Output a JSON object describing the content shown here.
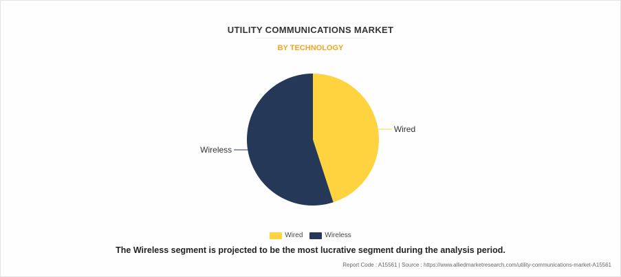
{
  "chart_data": {
    "type": "pie",
    "title": "UTILITY COMMUNICATIONS MARKET",
    "subtitle": "BY TECHNOLOGY",
    "labels": [
      "Wired",
      "Wireless"
    ],
    "values": [
      45,
      55
    ],
    "colors": [
      "#ffd23f",
      "#253858"
    ],
    "legend_position": "bottom"
  },
  "caption": "The Wireless segment is projected to be the most lucrative segment during the analysis period.",
  "footer": {
    "report_code": "Report Code : A15561",
    "separator": "|",
    "source": "Source : https://www.alliedmarketresearch.com/utility-communications-market-A15561"
  }
}
